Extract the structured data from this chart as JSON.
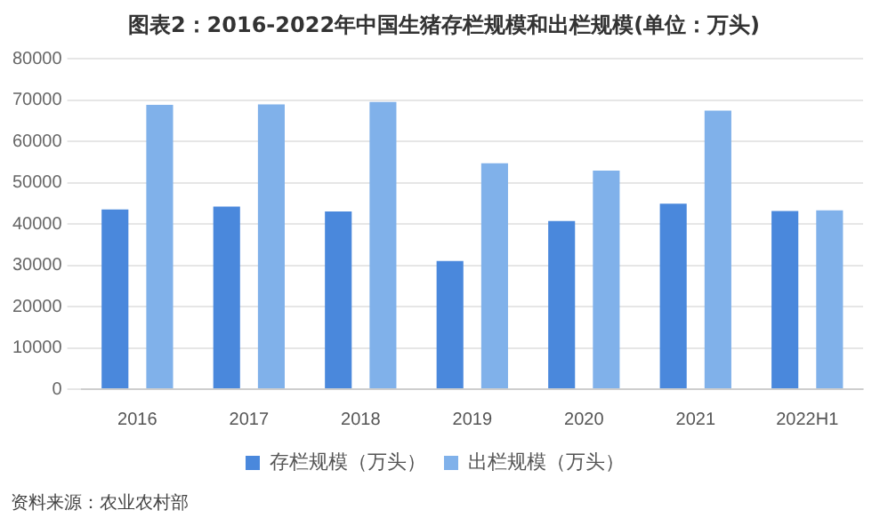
{
  "chart_data": {
    "type": "bar",
    "title": "图表2：2016-2022年中国生猪存栏规模和出栏规模(单位：万头)",
    "categories": [
      "2016",
      "2017",
      "2018",
      "2019",
      "2020",
      "2021",
      "2022H1"
    ],
    "series": [
      {
        "name": "存栏规模（万头）",
        "color": "#4a88dc",
        "values": [
          43500,
          44200,
          43000,
          31000,
          40700,
          44900,
          43100
        ]
      },
      {
        "name": "出栏规模（万头）",
        "color": "#80b1ea",
        "values": [
          68800,
          68900,
          69500,
          54700,
          52900,
          67400,
          43300
        ]
      }
    ],
    "ylim": [
      0,
      80000
    ],
    "yticks": [
      0,
      10000,
      20000,
      30000,
      40000,
      50000,
      60000,
      70000,
      80000
    ],
    "grid": "y",
    "legend": "bottom",
    "annotations": [
      "资料来源：农业农村部"
    ]
  }
}
